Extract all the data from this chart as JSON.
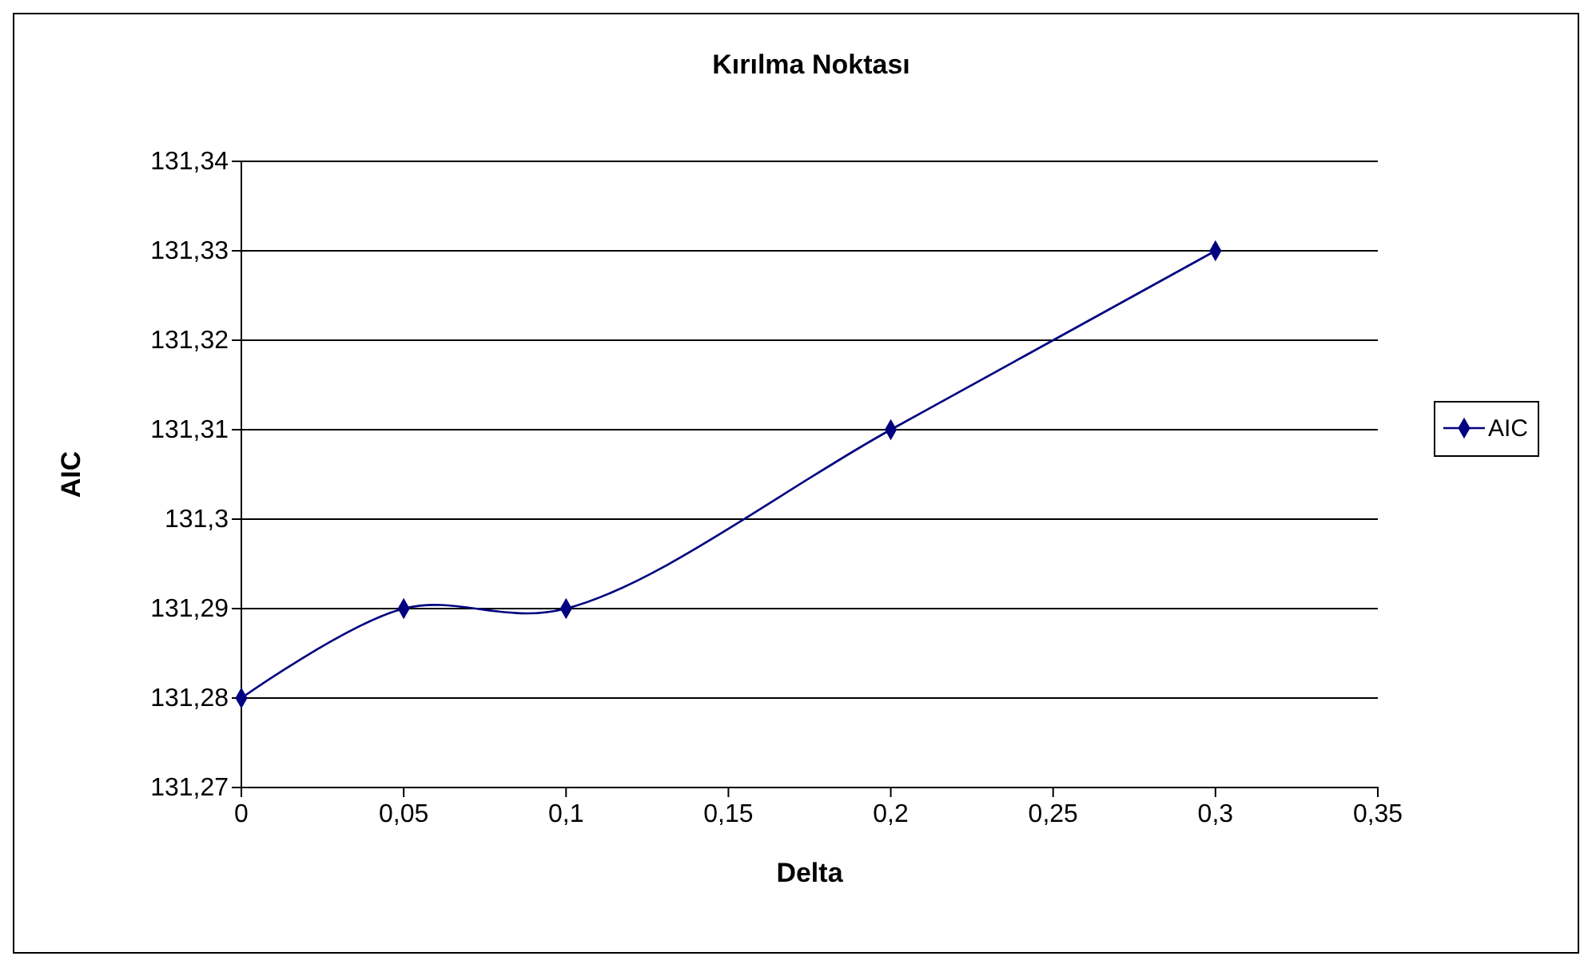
{
  "chart_data": {
    "type": "line",
    "title": "Kırılma Noktası",
    "xlabel": "Delta",
    "ylabel": "AIC",
    "x": [
      0,
      0.05,
      0.1,
      0.2,
      0.3
    ],
    "series": [
      {
        "name": "AIC",
        "color": "#000080",
        "values": [
          131.28,
          131.29,
          131.29,
          131.31,
          131.33
        ]
      }
    ],
    "xlim": [
      0,
      0.35
    ],
    "xticks": [
      0,
      {
        "value": 0.05,
        "label": "0,05"
      },
      {
        "value": 0.1,
        "label": "0,1"
      },
      {
        "value": 0.15,
        "label": "0,15"
      },
      {
        "value": 0.2,
        "label": "0,2"
      },
      {
        "value": 0.25,
        "label": "0,25"
      },
      {
        "value": 0.3,
        "label": "0,3"
      },
      {
        "value": 0.35,
        "label": "0,35"
      }
    ],
    "ylim": [
      131.27,
      131.34
    ],
    "yticks": [
      {
        "value": 131.27,
        "label": "131,27"
      },
      {
        "value": 131.28,
        "label": "131,28"
      },
      {
        "value": 131.29,
        "label": "131,29"
      },
      {
        "value": 131.3,
        "label": "131,3"
      },
      {
        "value": 131.31,
        "label": "131,31"
      },
      {
        "value": 131.32,
        "label": "131,32"
      },
      {
        "value": 131.33,
        "label": "131,33"
      },
      {
        "value": 131.34,
        "label": "131,34"
      }
    ],
    "grid": "y",
    "legend": "right",
    "marker": "diamond",
    "line_style": "solid"
  }
}
